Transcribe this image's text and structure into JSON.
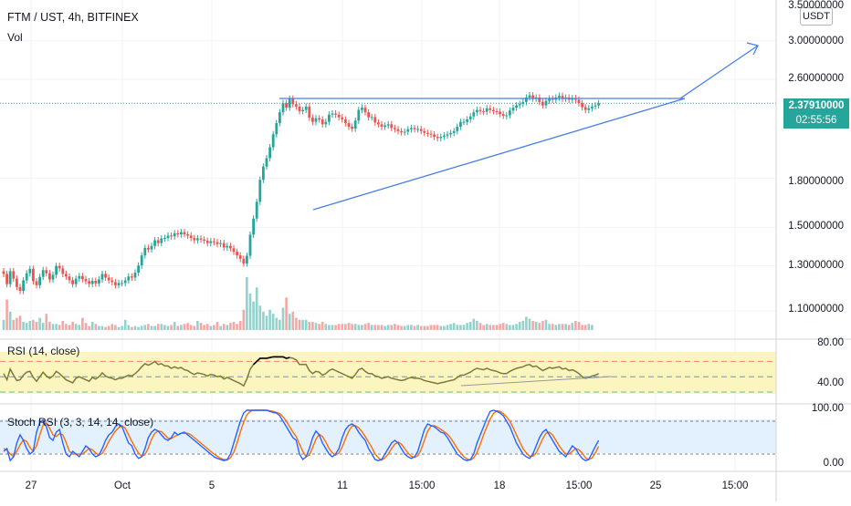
{
  "header": {
    "symbol": "FTM / UST, 4h, BITFINEX",
    "volume_label": "Vol",
    "currency": "USDT"
  },
  "price_axis": {
    "labels": [
      "3.50000000",
      "3.00000000",
      "2.60000000",
      "1.80000000",
      "1.50000000",
      "1.30000000",
      "1.10000000"
    ]
  },
  "last_price": {
    "value": "2.37910000",
    "countdown": "02:55:56"
  },
  "rsi_panel": {
    "title": "RSI (14, close)",
    "axis_labels": [
      "80.00",
      "40.00"
    ]
  },
  "stoch_panel": {
    "title": "Stoch RSI (3, 3, 14, 14, close)",
    "axis_labels": [
      "100.00",
      "0.00"
    ]
  },
  "time_axis": {
    "labels": [
      "27",
      "Oct",
      "5",
      "11",
      "15:00",
      "18",
      "15:00",
      "25",
      "15:00"
    ]
  },
  "colors": {
    "up": "#26a69a",
    "down": "#ef5350",
    "up_volume": "#93d2cc",
    "down_volume": "#f4a7a5",
    "trendline": "#4a7ee8",
    "rsi_line": "#7a7a3a",
    "rsi_band": "#fdf5c0",
    "stoch_band": "#e3f0fd",
    "stoch_k": "#2962ff",
    "stoch_d": "#ff6d00"
  },
  "chart_data": {
    "type": "candlestick",
    "ylim": [
      1.05,
      3.55
    ],
    "closes": [
      1.262,
      1.215,
      1.275,
      1.24,
      1.202,
      1.185,
      1.232,
      1.265,
      1.286,
      1.228,
      1.21,
      1.248,
      1.28,
      1.265,
      1.236,
      1.258,
      1.3,
      1.288,
      1.262,
      1.25,
      1.233,
      1.215,
      1.24,
      1.252,
      1.238,
      1.228,
      1.216,
      1.23,
      1.218,
      1.236,
      1.262,
      1.245,
      1.232,
      1.224,
      1.21,
      1.22,
      1.22,
      1.232,
      1.25,
      1.245,
      1.268,
      1.302,
      1.352,
      1.39,
      1.382,
      1.4,
      1.43,
      1.415,
      1.44,
      1.442,
      1.455,
      1.451,
      1.468,
      1.462,
      1.474,
      1.462,
      1.455,
      1.442,
      1.43,
      1.44,
      1.434,
      1.428,
      1.415,
      1.425,
      1.42,
      1.41,
      1.415,
      1.392,
      1.4,
      1.388,
      1.37,
      1.352,
      1.335,
      1.312,
      1.35,
      1.46,
      1.55,
      1.65,
      1.79,
      1.88,
      1.94,
      2.02,
      2.12,
      2.21,
      2.3,
      2.38,
      2.34,
      2.42,
      2.37,
      2.35,
      2.31,
      2.32,
      2.35,
      2.255,
      2.22,
      2.25,
      2.24,
      2.2,
      2.22,
      2.28,
      2.29,
      2.28,
      2.258,
      2.24,
      2.21,
      2.18,
      2.165,
      2.23,
      2.32,
      2.34,
      2.3,
      2.258,
      2.26,
      2.215,
      2.2,
      2.18,
      2.19,
      2.2,
      2.17,
      2.16,
      2.145,
      2.135,
      2.14,
      2.16,
      2.17,
      2.16,
      2.162,
      2.145,
      2.13,
      2.125,
      2.118,
      2.1,
      2.09,
      2.1,
      2.11,
      2.12,
      2.13,
      2.145,
      2.18,
      2.22,
      2.22,
      2.24,
      2.265,
      2.3,
      2.32,
      2.31,
      2.305,
      2.335,
      2.32,
      2.31,
      2.305,
      2.285,
      2.27,
      2.275,
      2.315,
      2.34,
      2.36,
      2.372,
      2.39,
      2.43,
      2.45,
      2.42,
      2.43,
      2.39,
      2.36,
      2.4,
      2.42,
      2.41,
      2.43,
      2.445,
      2.42,
      2.43,
      2.41,
      2.425,
      2.41,
      2.38,
      2.345,
      2.32,
      2.335,
      2.35,
      2.36,
      2.3791
    ],
    "volumes": [
      10,
      30,
      18,
      10,
      12,
      14,
      8,
      7,
      9,
      10,
      8,
      12,
      7,
      16,
      8,
      6,
      6,
      5,
      9,
      6,
      5,
      8,
      6,
      5,
      12,
      7,
      4,
      8,
      6,
      4,
      4,
      3,
      4,
      6,
      5,
      3,
      4,
      10,
      5,
      3,
      4,
      3,
      4,
      5,
      6,
      4,
      4,
      6,
      6,
      5,
      4,
      5,
      8,
      4,
      5,
      6,
      7,
      5,
      4,
      9,
      7,
      5,
      6,
      4,
      5,
      8,
      4,
      6,
      5,
      7,
      8,
      6,
      9,
      20,
      52,
      36,
      28,
      42,
      24,
      18,
      14,
      20,
      16,
      12,
      10,
      22,
      32,
      16,
      18,
      12,
      10,
      10,
      10,
      8,
      8,
      7,
      6,
      8,
      6,
      5,
      5,
      5,
      6,
      6,
      6,
      7,
      6,
      6,
      5,
      5,
      6,
      7,
      5,
      5,
      5,
      5,
      4,
      5,
      5,
      6,
      5,
      4,
      4,
      5,
      5,
      4,
      5,
      4,
      4,
      4,
      5,
      5,
      5,
      4,
      4,
      5,
      6,
      7,
      5,
      5,
      5,
      7,
      8,
      11,
      9,
      7,
      5,
      6,
      5,
      5,
      5,
      6,
      7,
      6,
      5,
      5,
      6,
      8,
      9,
      13,
      11,
      9,
      8,
      7,
      9,
      10,
      6,
      6,
      5,
      6,
      6,
      6,
      5,
      7,
      9,
      8,
      5,
      5,
      6,
      5
    ],
    "rsi": [
      54,
      46,
      60,
      52,
      45,
      46,
      52,
      56,
      57,
      49,
      44,
      50,
      56,
      51,
      48,
      51,
      57,
      54,
      50,
      46,
      44,
      42,
      48,
      50,
      48,
      46,
      44,
      49,
      47,
      50,
      55,
      51,
      49,
      48,
      46,
      48,
      48,
      50,
      52,
      51,
      54,
      58,
      63,
      67,
      65,
      67,
      70,
      66,
      67,
      64,
      64,
      61,
      63,
      61,
      62,
      59,
      58,
      55,
      53,
      55,
      54,
      53,
      51,
      53,
      52,
      50,
      51,
      47,
      49,
      47,
      45,
      43,
      41,
      38,
      47,
      60,
      66,
      70,
      74,
      74,
      74,
      75,
      76,
      76,
      76,
      76,
      74,
      75,
      74,
      72,
      66,
      66,
      66,
      58,
      54,
      57,
      56,
      52,
      54,
      58,
      60,
      58,
      56,
      54,
      52,
      50,
      48,
      53,
      59,
      61,
      57,
      54,
      54,
      51,
      50,
      48,
      49,
      50,
      48,
      47,
      46,
      45,
      46,
      48,
      49,
      48,
      48,
      47,
      45,
      44,
      43,
      42,
      41,
      42,
      43,
      44,
      45,
      46,
      49,
      52,
      52,
      54,
      56,
      59,
      61,
      60,
      59,
      61,
      59,
      58,
      57,
      55,
      54,
      54,
      57,
      59,
      61,
      62,
      63,
      65,
      66,
      63,
      64,
      61,
      58,
      60,
      62,
      61,
      62,
      63,
      60,
      61,
      58,
      59,
      57,
      54,
      50,
      48,
      49,
      51,
      52,
      54
    ],
    "stoch_k": [
      25,
      30,
      8,
      15,
      40,
      55,
      45,
      30,
      20,
      25,
      60,
      78,
      82,
      70,
      50,
      45,
      60,
      65,
      40,
      20,
      15,
      25,
      20,
      15,
      25,
      35,
      30,
      20,
      15,
      18,
      30,
      45,
      55,
      60,
      70,
      75,
      70,
      55,
      40,
      35,
      20,
      12,
      15,
      30,
      50,
      60,
      65,
      62,
      55,
      48,
      45,
      50,
      60,
      55,
      58,
      60,
      55,
      50,
      45,
      40,
      35,
      30,
      25,
      20,
      15,
      12,
      10,
      8,
      10,
      20,
      40,
      60,
      80,
      95,
      100,
      100,
      100,
      100,
      100,
      100,
      100,
      98,
      96,
      95,
      90,
      80,
      70,
      60,
      50,
      45,
      20,
      10,
      15,
      30,
      50,
      62,
      55,
      40,
      30,
      20,
      15,
      20,
      30,
      50,
      65,
      72,
      75,
      70,
      60,
      52,
      45,
      30,
      20,
      10,
      8,
      10,
      20,
      30,
      40,
      45,
      40,
      30,
      20,
      15,
      12,
      15,
      25,
      45,
      65,
      75,
      72,
      70,
      65,
      60,
      58,
      50,
      40,
      30,
      20,
      15,
      10,
      8,
      10,
      20,
      40,
      55,
      70,
      85,
      98,
      100,
      98,
      95,
      90,
      80,
      70,
      55,
      40,
      30,
      20,
      15,
      12,
      20,
      35,
      50,
      60,
      65,
      55,
      45,
      35,
      25,
      20,
      15,
      25,
      35,
      30,
      20,
      12,
      8,
      10,
      22,
      34,
      45
    ],
    "stoch_d": [
      30,
      27,
      20,
      15,
      25,
      37,
      46,
      43,
      32,
      25,
      35,
      55,
      73,
      77,
      67,
      55,
      52,
      57,
      55,
      41,
      25,
      20,
      20,
      20,
      20,
      25,
      30,
      28,
      22,
      18,
      21,
      31,
      43,
      53,
      62,
      68,
      72,
      67,
      55,
      43,
      32,
      22,
      16,
      19,
      31,
      47,
      58,
      62,
      61,
      55,
      49,
      48,
      52,
      55,
      58,
      58,
      58,
      55,
      50,
      45,
      40,
      35,
      30,
      25,
      20,
      16,
      12,
      10,
      9,
      13,
      23,
      40,
      60,
      78,
      92,
      98,
      100,
      100,
      100,
      100,
      100,
      99,
      98,
      96,
      94,
      88,
      80,
      70,
      60,
      52,
      38,
      25,
      15,
      18,
      32,
      47,
      56,
      52,
      42,
      30,
      22,
      18,
      22,
      33,
      48,
      62,
      71,
      72,
      68,
      61,
      52,
      42,
      32,
      20,
      13,
      9,
      13,
      20,
      30,
      38,
      42,
      38,
      30,
      22,
      16,
      14,
      17,
      28,
      45,
      62,
      71,
      72,
      69,
      65,
      61,
      56,
      49,
      40,
      30,
      22,
      15,
      11,
      9,
      13,
      23,
      38,
      55,
      70,
      84,
      94,
      99,
      98,
      94,
      88,
      80,
      68,
      55,
      42,
      30,
      22,
      16,
      16,
      22,
      35,
      48,
      58,
      60,
      55,
      45,
      35,
      27,
      20,
      20,
      25,
      30,
      28,
      22,
      13,
      10,
      13,
      22,
      34
    ]
  }
}
